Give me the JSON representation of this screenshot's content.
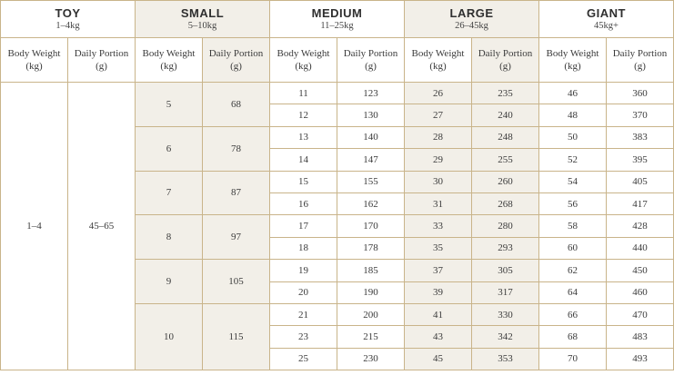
{
  "groups": {
    "toy": {
      "name": "TOY",
      "range": "1–4kg"
    },
    "small": {
      "name": "SMALL",
      "range": "5–10kg"
    },
    "medium": {
      "name": "MEDIUM",
      "range": "11–25kg"
    },
    "large": {
      "name": "LARGE",
      "range": "26–45kg"
    },
    "giant": {
      "name": "GIANT",
      "range": "45kg+"
    }
  },
  "sub": {
    "weight_l1": "Body Weight",
    "weight_l2": "(kg)",
    "portion_l1": "Daily Portion",
    "portion_l2": "(g)"
  },
  "toy": {
    "weight": "1–4",
    "portion": "45–65"
  },
  "small": [
    {
      "weight": "5",
      "portion": "68"
    },
    {
      "weight": "6",
      "portion": "78"
    },
    {
      "weight": "7",
      "portion": "87"
    },
    {
      "weight": "8",
      "portion": "97"
    },
    {
      "weight": "9",
      "portion": "105"
    },
    {
      "weight": "10",
      "portion": "115"
    }
  ],
  "medium": [
    {
      "weight": "11",
      "portion": "123"
    },
    {
      "weight": "12",
      "portion": "130"
    },
    {
      "weight": "13",
      "portion": "140"
    },
    {
      "weight": "14",
      "portion": "147"
    },
    {
      "weight": "15",
      "portion": "155"
    },
    {
      "weight": "16",
      "portion": "162"
    },
    {
      "weight": "17",
      "portion": "170"
    },
    {
      "weight": "18",
      "portion": "178"
    },
    {
      "weight": "19",
      "portion": "185"
    },
    {
      "weight": "20",
      "portion": "190"
    },
    {
      "weight": "21",
      "portion": "200"
    },
    {
      "weight": "23",
      "portion": "215"
    },
    {
      "weight": "25",
      "portion": "230"
    }
  ],
  "large": [
    {
      "weight": "26",
      "portion": "235"
    },
    {
      "weight": "27",
      "portion": "240"
    },
    {
      "weight": "28",
      "portion": "248"
    },
    {
      "weight": "29",
      "portion": "255"
    },
    {
      "weight": "30",
      "portion": "260"
    },
    {
      "weight": "31",
      "portion": "268"
    },
    {
      "weight": "33",
      "portion": "280"
    },
    {
      "weight": "35",
      "portion": "293"
    },
    {
      "weight": "37",
      "portion": "305"
    },
    {
      "weight": "39",
      "portion": "317"
    },
    {
      "weight": "41",
      "portion": "330"
    },
    {
      "weight": "43",
      "portion": "342"
    },
    {
      "weight": "45",
      "portion": "353"
    }
  ],
  "giant": [
    {
      "weight": "46",
      "portion": "360"
    },
    {
      "weight": "48",
      "portion": "370"
    },
    {
      "weight": "50",
      "portion": "383"
    },
    {
      "weight": "52",
      "portion": "395"
    },
    {
      "weight": "54",
      "portion": "405"
    },
    {
      "weight": "56",
      "portion": "417"
    },
    {
      "weight": "58",
      "portion": "428"
    },
    {
      "weight": "60",
      "portion": "440"
    },
    {
      "weight": "62",
      "portion": "450"
    },
    {
      "weight": "64",
      "portion": "460"
    },
    {
      "weight": "66",
      "portion": "470"
    },
    {
      "weight": "68",
      "portion": "483"
    },
    {
      "weight": "70",
      "portion": "493"
    }
  ],
  "colors": {
    "border": "#c9b48a",
    "shade": "#f2efe8",
    "text": "#3b3b3b"
  }
}
